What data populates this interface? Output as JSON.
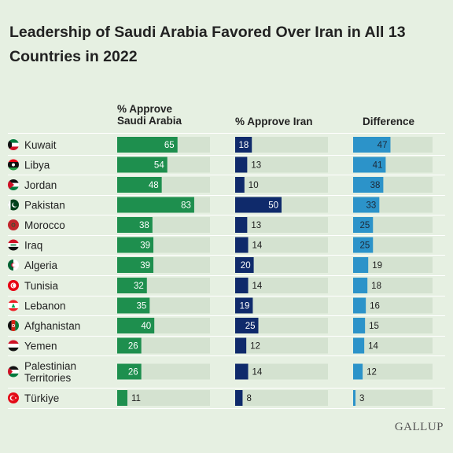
{
  "title": "Leadership of Saudi Arabia Favored Over Iran in All 13 Countries in 2022",
  "headers": {
    "saudi_line1": "% Approve",
    "saudi_line2": "Saudi Arabia",
    "iran": "% Approve Iran",
    "difference": "Difference"
  },
  "logo": "GALLUP",
  "colors": {
    "background": "#e6f0e2",
    "track": "#d4e2d0",
    "saudi": "#1e8f4e",
    "iran": "#0f2a6b",
    "difference": "#2c93c9",
    "rule": "#ffffff"
  },
  "chart_data": {
    "type": "bar",
    "title": "Leadership of Saudi Arabia Favored Over Iran in All 13 Countries in 2022",
    "categories": [
      "Kuwait",
      "Libya",
      "Jordan",
      "Pakistan",
      "Morocco",
      "Iraq",
      "Algeria",
      "Tunisia",
      "Lebanon",
      "Afghanistan",
      "Yemen",
      "Palestinian Territories",
      "Türkiye"
    ],
    "category_lines": [
      [
        "Kuwait"
      ],
      [
        "Libya"
      ],
      [
        "Jordan"
      ],
      [
        "Pakistan"
      ],
      [
        "Morocco"
      ],
      [
        "Iraq"
      ],
      [
        "Algeria"
      ],
      [
        "Tunisia"
      ],
      [
        "Lebanon"
      ],
      [
        "Afghanistan"
      ],
      [
        "Yemen"
      ],
      [
        "Palestinian",
        "Territories"
      ],
      [
        "Türkiye"
      ]
    ],
    "flag_icons": [
      "kuwait-flag-icon",
      "libya-flag-icon",
      "jordan-flag-icon",
      "pakistan-flag-icon",
      "morocco-flag-icon",
      "iraq-flag-icon",
      "algeria-flag-icon",
      "tunisia-flag-icon",
      "lebanon-flag-icon",
      "afghanistan-flag-icon",
      "yemen-flag-icon",
      "palestine-flag-icon",
      "turkiye-flag-icon"
    ],
    "series": [
      {
        "name": "% Approve Saudi Arabia",
        "values": [
          65,
          54,
          48,
          83,
          38,
          39,
          39,
          32,
          35,
          40,
          26,
          26,
          11
        ]
      },
      {
        "name": "% Approve Iran",
        "values": [
          18,
          13,
          10,
          50,
          13,
          14,
          20,
          14,
          19,
          25,
          12,
          14,
          8
        ]
      },
      {
        "name": "Difference",
        "values": [
          47,
          41,
          38,
          33,
          25,
          25,
          19,
          18,
          16,
          15,
          14,
          12,
          3
        ]
      }
    ],
    "xlim": [
      0,
      100
    ]
  }
}
